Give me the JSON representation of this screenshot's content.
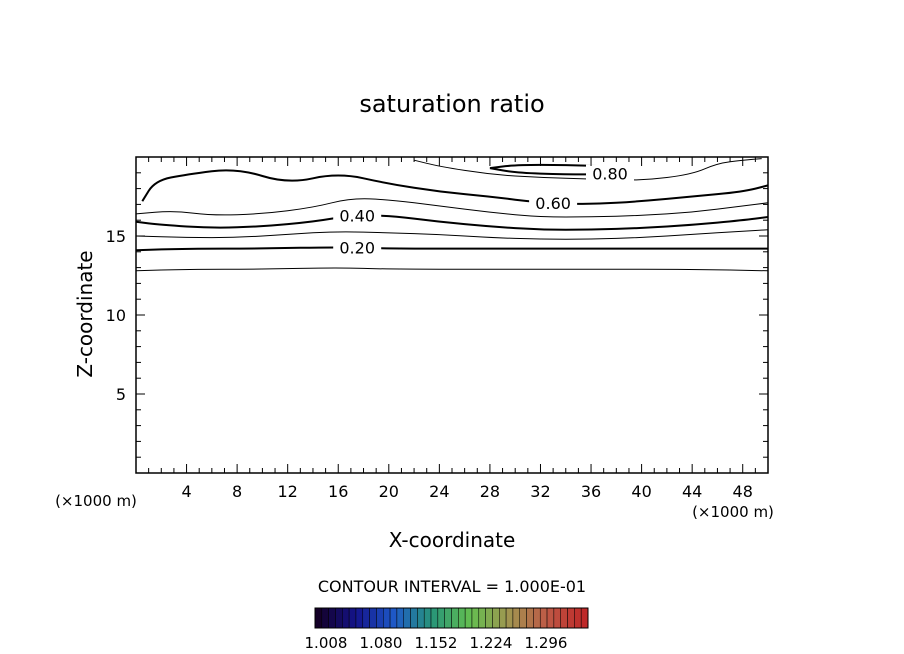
{
  "chart_data": {
    "type": "contour",
    "title": "saturation ratio",
    "xlabel": "X-coordinate",
    "ylabel": "Z-coordinate",
    "x_unit": "(×1000 m)",
    "z_unit": "(×1000 m)",
    "xlim": [
      0,
      50
    ],
    "ylim": [
      0,
      20
    ],
    "x_ticks": [
      "4",
      "8",
      "12",
      "16",
      "20",
      "24",
      "28",
      "32",
      "36",
      "40",
      "44",
      "48"
    ],
    "y_ticks": [
      "5",
      "10",
      "15"
    ],
    "contour_interval_text": "CONTOUR INTERVAL = 1.000E-01",
    "colorbar_labels": [
      "1.008",
      "1.080",
      "1.152",
      "1.224",
      "1.296"
    ],
    "contours": [
      {
        "level": "",
        "bold": false,
        "x": [
          0,
          4,
          10,
          16,
          20,
          28,
          36,
          44,
          50
        ],
        "y": [
          12.8,
          12.9,
          12.9,
          13.0,
          12.9,
          12.9,
          12.9,
          12.9,
          12.8
        ]
      },
      {
        "level": "0.20",
        "bold": true,
        "x": [
          0,
          4,
          10,
          16,
          20,
          28,
          36,
          44,
          50
        ],
        "y": [
          14.1,
          14.2,
          14.2,
          14.3,
          14.2,
          14.2,
          14.2,
          14.2,
          14.2
        ]
      },
      {
        "level": "",
        "bold": false,
        "x": [
          0,
          4,
          8,
          12,
          16,
          20,
          24,
          28,
          32,
          36,
          40,
          44,
          48,
          50
        ],
        "y": [
          15.0,
          14.9,
          14.9,
          15.1,
          15.3,
          15.2,
          15.1,
          14.9,
          14.8,
          14.8,
          14.9,
          15.1,
          15.3,
          15.4
        ]
      },
      {
        "level": "0.40",
        "bold": true,
        "x": [
          0,
          2,
          6,
          10,
          14,
          17,
          20,
          24,
          28,
          32,
          36,
          40,
          44,
          48,
          50
        ],
        "y": [
          15.9,
          15.7,
          15.5,
          15.6,
          15.9,
          16.3,
          16.3,
          15.9,
          15.6,
          15.4,
          15.4,
          15.5,
          15.7,
          16.0,
          16.2
        ]
      },
      {
        "level": "",
        "bold": false,
        "x": [
          0,
          3,
          6,
          10,
          14,
          17,
          20,
          24,
          28,
          32,
          36,
          40,
          44,
          48,
          50
        ],
        "y": [
          16.4,
          16.6,
          16.3,
          16.4,
          16.8,
          17.4,
          17.3,
          16.9,
          16.5,
          16.2,
          16.2,
          16.3,
          16.5,
          16.9,
          17.1
        ]
      },
      {
        "level": "0.60",
        "bold": true,
        "x": [
          0.5,
          1.5,
          4,
          8,
          12,
          16,
          20,
          24,
          28,
          32,
          36,
          40,
          44,
          48,
          50
        ],
        "y": [
          17.2,
          18.5,
          18.9,
          19.3,
          18.3,
          19.0,
          18.3,
          17.8,
          17.5,
          17.1,
          17.0,
          17.2,
          17.5,
          17.8,
          18.2
        ]
      },
      {
        "level": "",
        "bold": false,
        "x": [
          22,
          24,
          28,
          32,
          36,
          40,
          44,
          46,
          48,
          49.5
        ],
        "y": [
          19.8,
          19.4,
          18.9,
          18.7,
          18.6,
          18.5,
          18.9,
          19.6,
          19.8,
          19.9
        ]
      },
      {
        "level": "0.80",
        "bold": true,
        "x": [
          28,
          30,
          34,
          37,
          39,
          38,
          34,
          30,
          28
        ],
        "y": [
          19.3,
          19.0,
          18.9,
          18.9,
          19.1,
          19.4,
          19.5,
          19.5,
          19.3
        ]
      }
    ]
  }
}
